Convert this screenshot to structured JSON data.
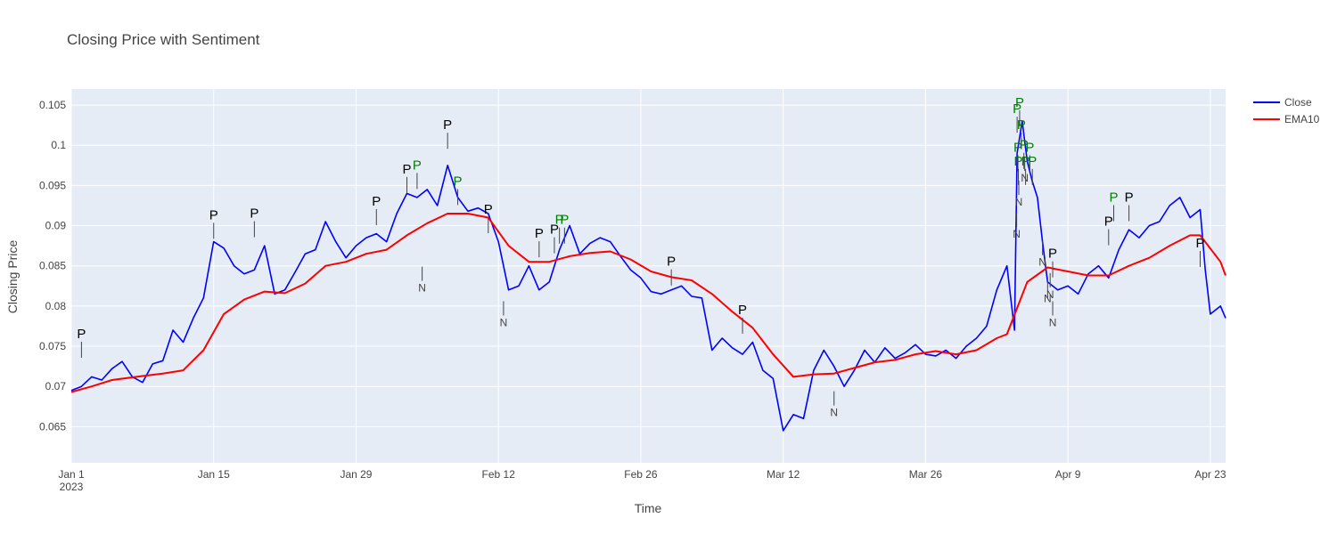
{
  "chart_data": {
    "type": "line",
    "title": "Closing Price with Sentiment",
    "xlabel": "Time",
    "ylabel": "Closing Price",
    "xlim": [
      "2023-01-01",
      "2023-04-24 12:00"
    ],
    "ylim": [
      0.0605,
      0.107
    ],
    "x_ticks": [
      {
        "date": "2023-01-01",
        "label": "Jan 1",
        "sublabel": "2023"
      },
      {
        "date": "2023-01-15",
        "label": "Jan 15"
      },
      {
        "date": "2023-01-29",
        "label": "Jan 29"
      },
      {
        "date": "2023-02-12",
        "label": "Feb 12"
      },
      {
        "date": "2023-02-26",
        "label": "Feb 26"
      },
      {
        "date": "2023-03-12",
        "label": "Mar 12"
      },
      {
        "date": "2023-03-26",
        "label": "Mar 26"
      },
      {
        "date": "2023-04-09",
        "label": "Apr 9"
      },
      {
        "date": "2023-04-23",
        "label": "Apr 23"
      }
    ],
    "y_ticks": [
      {
        "value": 0.065,
        "label": "0.065"
      },
      {
        "value": 0.07,
        "label": "0.07"
      },
      {
        "value": 0.075,
        "label": "0.075"
      },
      {
        "value": 0.08,
        "label": "0.08"
      },
      {
        "value": 0.085,
        "label": "0.085"
      },
      {
        "value": 0.09,
        "label": "0.09"
      },
      {
        "value": 0.095,
        "label": "0.095"
      },
      {
        "value": 0.1,
        "label": "0.1"
      },
      {
        "value": 0.105,
        "label": "0.105"
      }
    ],
    "grid": true,
    "legend_position": "top-right",
    "series": [
      {
        "name": "Close",
        "color": "#0000ff",
        "points": [
          [
            "2023-01-01",
            0.0695
          ],
          [
            "2023-01-02",
            0.07
          ],
          [
            "2023-01-03",
            0.0712
          ],
          [
            "2023-01-04",
            0.0708
          ],
          [
            "2023-01-05",
            0.0722
          ],
          [
            "2023-01-06",
            0.0731
          ],
          [
            "2023-01-07",
            0.0712
          ],
          [
            "2023-01-08",
            0.0705
          ],
          [
            "2023-01-09",
            0.0728
          ],
          [
            "2023-01-10",
            0.0732
          ],
          [
            "2023-01-11",
            0.077
          ],
          [
            "2023-01-12",
            0.0755
          ],
          [
            "2023-01-13",
            0.0785
          ],
          [
            "2023-01-14",
            0.081
          ],
          [
            "2023-01-15",
            0.088
          ],
          [
            "2023-01-16",
            0.0872
          ],
          [
            "2023-01-17",
            0.085
          ],
          [
            "2023-01-18",
            0.084
          ],
          [
            "2023-01-19",
            0.0845
          ],
          [
            "2023-01-20",
            0.0875
          ],
          [
            "2023-01-21",
            0.0815
          ],
          [
            "2023-01-22",
            0.082
          ],
          [
            "2023-01-23",
            0.0842
          ],
          [
            "2023-01-24",
            0.0865
          ],
          [
            "2023-01-25",
            0.087
          ],
          [
            "2023-01-26",
            0.0905
          ],
          [
            "2023-01-27",
            0.088
          ],
          [
            "2023-01-28",
            0.086
          ],
          [
            "2023-01-29",
            0.0875
          ],
          [
            "2023-01-30",
            0.0885
          ],
          [
            "2023-01-31",
            0.089
          ],
          [
            "2023-02-01",
            0.088
          ],
          [
            "2023-02-02",
            0.0915
          ],
          [
            "2023-02-03",
            0.094
          ],
          [
            "2023-02-04",
            0.0935
          ],
          [
            "2023-02-05",
            0.0945
          ],
          [
            "2023-02-06",
            0.0925
          ],
          [
            "2023-02-07",
            0.0975
          ],
          [
            "2023-02-08",
            0.0935
          ],
          [
            "2023-02-09",
            0.0918
          ],
          [
            "2023-02-10",
            0.0922
          ],
          [
            "2023-02-11",
            0.0915
          ],
          [
            "2023-02-12",
            0.088
          ],
          [
            "2023-02-13",
            0.082
          ],
          [
            "2023-02-14",
            0.0825
          ],
          [
            "2023-02-15",
            0.085
          ],
          [
            "2023-02-16",
            0.082
          ],
          [
            "2023-02-17",
            0.083
          ],
          [
            "2023-02-18",
            0.087
          ],
          [
            "2023-02-19",
            0.09
          ],
          [
            "2023-02-20",
            0.0865
          ],
          [
            "2023-02-21",
            0.0878
          ],
          [
            "2023-02-22",
            0.0885
          ],
          [
            "2023-02-23",
            0.088
          ],
          [
            "2023-02-24",
            0.0862
          ],
          [
            "2023-02-25",
            0.0845
          ],
          [
            "2023-02-26",
            0.0835
          ],
          [
            "2023-02-27",
            0.0818
          ],
          [
            "2023-02-28",
            0.0815
          ],
          [
            "2023-03-01",
            0.082
          ],
          [
            "2023-03-02",
            0.0825
          ],
          [
            "2023-03-03",
            0.0812
          ],
          [
            "2023-03-04",
            0.081
          ],
          [
            "2023-03-05",
            0.0745
          ],
          [
            "2023-03-06",
            0.076
          ],
          [
            "2023-03-07",
            0.0748
          ],
          [
            "2023-03-08",
            0.074
          ],
          [
            "2023-03-09",
            0.0755
          ],
          [
            "2023-03-10",
            0.072
          ],
          [
            "2023-03-11",
            0.071
          ],
          [
            "2023-03-12",
            0.0645
          ],
          [
            "2023-03-13",
            0.0665
          ],
          [
            "2023-03-14",
            0.066
          ],
          [
            "2023-03-15",
            0.072
          ],
          [
            "2023-03-16",
            0.0745
          ],
          [
            "2023-03-17",
            0.0725
          ],
          [
            "2023-03-18",
            0.07
          ],
          [
            "2023-03-19",
            0.072
          ],
          [
            "2023-03-20",
            0.0745
          ],
          [
            "2023-03-21",
            0.073
          ],
          [
            "2023-03-22",
            0.0748
          ],
          [
            "2023-03-23",
            0.0735
          ],
          [
            "2023-03-24",
            0.0742
          ],
          [
            "2023-03-25",
            0.0752
          ],
          [
            "2023-03-26",
            0.074
          ],
          [
            "2023-03-27",
            0.0738
          ],
          [
            "2023-03-28",
            0.0745
          ],
          [
            "2023-03-29",
            0.0735
          ],
          [
            "2023-03-30",
            0.075
          ],
          [
            "2023-03-31",
            0.076
          ],
          [
            "2023-04-01",
            0.0775
          ],
          [
            "2023-04-02",
            0.082
          ],
          [
            "2023-04-03",
            0.085
          ],
          [
            "2023-04-03 18:00",
            0.077
          ],
          [
            "2023-04-04",
            0.099
          ],
          [
            "2023-04-04 12:00",
            0.103
          ],
          [
            "2023-04-05",
            0.098
          ],
          [
            "2023-04-05 12:00",
            0.0955
          ],
          [
            "2023-04-06",
            0.0935
          ],
          [
            "2023-04-06 12:00",
            0.088
          ],
          [
            "2023-04-07",
            0.083
          ],
          [
            "2023-04-08",
            0.082
          ],
          [
            "2023-04-09",
            0.0825
          ],
          [
            "2023-04-10",
            0.0815
          ],
          [
            "2023-04-11",
            0.084
          ],
          [
            "2023-04-12",
            0.085
          ],
          [
            "2023-04-13",
            0.0835
          ],
          [
            "2023-04-14",
            0.087
          ],
          [
            "2023-04-15",
            0.0895
          ],
          [
            "2023-04-16",
            0.0885
          ],
          [
            "2023-04-17",
            0.09
          ],
          [
            "2023-04-18",
            0.0905
          ],
          [
            "2023-04-19",
            0.0925
          ],
          [
            "2023-04-20",
            0.0935
          ],
          [
            "2023-04-21",
            0.091
          ],
          [
            "2023-04-22",
            0.092
          ],
          [
            "2023-04-22 12:00",
            0.0845
          ],
          [
            "2023-04-23",
            0.079
          ],
          [
            "2023-04-24",
            0.08
          ],
          [
            "2023-04-24 12:00",
            0.0785
          ]
        ]
      },
      {
        "name": "EMA10",
        "color": "#ff0000",
        "points": [
          [
            "2023-01-01",
            0.0693
          ],
          [
            "2023-01-03",
            0.07
          ],
          [
            "2023-01-05",
            0.0708
          ],
          [
            "2023-01-08",
            0.0713
          ],
          [
            "2023-01-10",
            0.0716
          ],
          [
            "2023-01-12",
            0.072
          ],
          [
            "2023-01-14",
            0.0745
          ],
          [
            "2023-01-16",
            0.079
          ],
          [
            "2023-01-18",
            0.0808
          ],
          [
            "2023-01-20",
            0.0818
          ],
          [
            "2023-01-22",
            0.0816
          ],
          [
            "2023-01-24",
            0.0828
          ],
          [
            "2023-01-26",
            0.085
          ],
          [
            "2023-01-28",
            0.0855
          ],
          [
            "2023-01-30",
            0.0865
          ],
          [
            "2023-02-01",
            0.087
          ],
          [
            "2023-02-03",
            0.0888
          ],
          [
            "2023-02-05",
            0.0903
          ],
          [
            "2023-02-07",
            0.0915
          ],
          [
            "2023-02-09",
            0.0915
          ],
          [
            "2023-02-11",
            0.091
          ],
          [
            "2023-02-13",
            0.0875
          ],
          [
            "2023-02-15",
            0.0855
          ],
          [
            "2023-02-17",
            0.0855
          ],
          [
            "2023-02-19",
            0.0862
          ],
          [
            "2023-02-21",
            0.0866
          ],
          [
            "2023-02-23",
            0.0868
          ],
          [
            "2023-02-25",
            0.0858
          ],
          [
            "2023-02-27",
            0.0843
          ],
          [
            "2023-03-01",
            0.0836
          ],
          [
            "2023-03-03",
            0.0832
          ],
          [
            "2023-03-05",
            0.0815
          ],
          [
            "2023-03-07",
            0.0793
          ],
          [
            "2023-03-09",
            0.0773
          ],
          [
            "2023-03-11",
            0.074
          ],
          [
            "2023-03-13",
            0.0712
          ],
          [
            "2023-03-15",
            0.0715
          ],
          [
            "2023-03-17",
            0.0716
          ],
          [
            "2023-03-19",
            0.0723
          ],
          [
            "2023-03-21",
            0.073
          ],
          [
            "2023-03-23",
            0.0733
          ],
          [
            "2023-03-25",
            0.074
          ],
          [
            "2023-03-27",
            0.0744
          ],
          [
            "2023-03-29",
            0.074
          ],
          [
            "2023-03-31",
            0.0745
          ],
          [
            "2023-04-02",
            0.076
          ],
          [
            "2023-04-03",
            0.0765
          ],
          [
            "2023-04-05",
            0.083
          ],
          [
            "2023-04-07",
            0.0848
          ],
          [
            "2023-04-09",
            0.0843
          ],
          [
            "2023-04-11",
            0.0838
          ],
          [
            "2023-04-13",
            0.0838
          ],
          [
            "2023-04-15",
            0.085
          ],
          [
            "2023-04-17",
            0.086
          ],
          [
            "2023-04-19",
            0.0875
          ],
          [
            "2023-04-21",
            0.0888
          ],
          [
            "2023-04-22",
            0.0888
          ],
          [
            "2023-04-24",
            0.0855
          ],
          [
            "2023-04-24 12:00",
            0.0838
          ]
        ]
      }
    ],
    "annotations": [
      {
        "label": "P",
        "x": "2023-01-02",
        "y": 0.076,
        "color": "#000000"
      },
      {
        "label": "P",
        "x": "2023-01-15",
        "y": 0.0908,
        "color": "#000000"
      },
      {
        "label": "P",
        "x": "2023-01-19",
        "y": 0.091,
        "color": "#000000"
      },
      {
        "label": "P",
        "x": "2023-01-31",
        "y": 0.0925,
        "color": "#000000"
      },
      {
        "label": "P",
        "x": "2023-02-03",
        "y": 0.0965,
        "color": "#000000"
      },
      {
        "label": "P",
        "x": "2023-02-04",
        "y": 0.097,
        "color": "#008000"
      },
      {
        "label": "N",
        "x": "2023-02-04 12:00",
        "y": 0.0818,
        "color": "#444444"
      },
      {
        "label": "P",
        "x": "2023-02-07",
        "y": 0.102,
        "color": "#000000"
      },
      {
        "label": "P",
        "x": "2023-02-08",
        "y": 0.095,
        "color": "#008000"
      },
      {
        "label": "P",
        "x": "2023-02-11",
        "y": 0.0915,
        "color": "#000000"
      },
      {
        "label": "N",
        "x": "2023-02-12 12:00",
        "y": 0.0775,
        "color": "#444444"
      },
      {
        "label": "P",
        "x": "2023-02-16",
        "y": 0.0885,
        "color": "#000000"
      },
      {
        "label": "P",
        "x": "2023-02-17 12:00",
        "y": 0.089,
        "color": "#000000"
      },
      {
        "label": "P",
        "x": "2023-02-18",
        "y": 0.0902,
        "color": "#008000"
      },
      {
        "label": "P",
        "x": "2023-02-18 12:00",
        "y": 0.0902,
        "color": "#008000"
      },
      {
        "label": "P",
        "x": "2023-03-01",
        "y": 0.085,
        "color": "#000000"
      },
      {
        "label": "P",
        "x": "2023-03-08",
        "y": 0.079,
        "color": "#000000"
      },
      {
        "label": "N",
        "x": "2023-03-17",
        "y": 0.0663,
        "color": "#444444"
      },
      {
        "label": "P",
        "x": "2023-04-04",
        "y": 0.104,
        "color": "#008000"
      },
      {
        "label": "P",
        "x": "2023-04-04 06:00",
        "y": 0.1048,
        "color": "#008000"
      },
      {
        "label": "P",
        "x": "2023-04-04 10:00",
        "y": 0.102,
        "color": "#008000"
      },
      {
        "label": "P",
        "x": "2023-04-04 16:00",
        "y": 0.0995,
        "color": "#008000"
      },
      {
        "label": "P",
        "x": "2023-04-04 02:00",
        "y": 0.0992,
        "color": "#008000"
      },
      {
        "label": "P",
        "x": "2023-04-04 03:00",
        "y": 0.0975,
        "color": "#008000"
      },
      {
        "label": "P",
        "x": "2023-04-04 20:00",
        "y": 0.0975,
        "color": "#008000"
      },
      {
        "label": "P",
        "x": "2023-04-05 06:00",
        "y": 0.0992,
        "color": "#008000"
      },
      {
        "label": "P",
        "x": "2023-04-05 12:00",
        "y": 0.0975,
        "color": "#008000"
      },
      {
        "label": "N",
        "x": "2023-04-03 23:00",
        "y": 0.0885,
        "color": "#444444"
      },
      {
        "label": "N",
        "x": "2023-04-04 04:00",
        "y": 0.0925,
        "color": "#444444"
      },
      {
        "label": "N",
        "x": "2023-04-04 18:00",
        "y": 0.0955,
        "color": "#444444"
      },
      {
        "label": "N",
        "x": "2023-04-06 12:00",
        "y": 0.085,
        "color": "#444444"
      },
      {
        "label": "N",
        "x": "2023-04-07",
        "y": 0.0805,
        "color": "#444444"
      },
      {
        "label": "N",
        "x": "2023-04-07 06:00",
        "y": 0.081,
        "color": "#444444"
      },
      {
        "label": "N",
        "x": "2023-04-07 12:00",
        "y": 0.0775,
        "color": "#444444"
      },
      {
        "label": "P",
        "x": "2023-04-07 12:00",
        "y": 0.086,
        "color": "#000000"
      },
      {
        "label": "P",
        "x": "2023-04-13",
        "y": 0.09,
        "color": "#000000"
      },
      {
        "label": "P",
        "x": "2023-04-13 12:00",
        "y": 0.093,
        "color": "#008000"
      },
      {
        "label": "P",
        "x": "2023-04-15",
        "y": 0.093,
        "color": "#000000"
      },
      {
        "label": "P",
        "x": "2023-04-22",
        "y": 0.0873,
        "color": "#000000"
      }
    ]
  }
}
